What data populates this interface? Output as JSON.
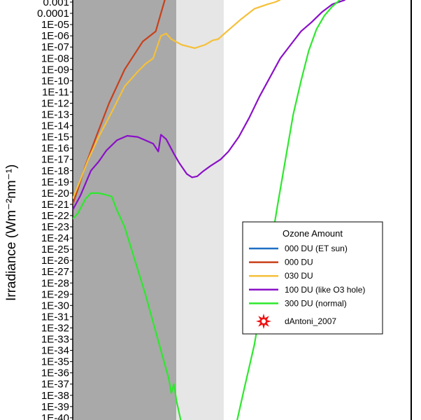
{
  "chart_data": {
    "type": "line",
    "title": "",
    "xlabel": "",
    "ylabel": "Irradiance (Wm⁻²nm⁻¹)",
    "y_scale": "log10",
    "yticks": [
      "0.001",
      "0.0001",
      "1E-05",
      "1E-06",
      "1E-07",
      "1E-08",
      "1E-09",
      "1E-10",
      "1E-11",
      "1E-12",
      "1E-13",
      "1E-14",
      "1E-15",
      "1E-16",
      "1E-17",
      "1E-18",
      "1E-19",
      "1E-20",
      "1E-21",
      "1E-22",
      "1E-23",
      "1E-24",
      "1E-25",
      "1E-26",
      "1E-27",
      "1E-28",
      "1E-29",
      "1E-30",
      "1E-31",
      "1E-32",
      "1E-33",
      "1E-34",
      "1E-35",
      "1E-36",
      "1E-37",
      "1E-38",
      "1E-39",
      "1E-40"
    ],
    "ylim_exponent": [
      -40.6,
      -2.8
    ],
    "xlim_fraction": [
      0,
      1
    ],
    "shaded_regions": [
      {
        "name": "dark-band",
        "x_range": [
          0.0,
          0.399
        ],
        "color": "#a9a9a9"
      },
      {
        "name": "light-band",
        "x_range": [
          0.399,
          0.582
        ],
        "color": "#e6e6e6"
      }
    ],
    "legend": {
      "title": "Ozone Amount",
      "position": "center-right",
      "entries": [
        {
          "label": "000 DU (ET sun)",
          "color": "#1f6fc4",
          "marker": "line"
        },
        {
          "label": "000 DU",
          "color": "#c8401a",
          "marker": "line"
        },
        {
          "label": "030 DU",
          "color": "#f5c03a",
          "marker": "line"
        },
        {
          "label": "100 DU (like O3 hole)",
          "color": "#8a10c8",
          "marker": "line"
        },
        {
          "label": "300 DU (normal)",
          "color": "#2de82d",
          "marker": "line"
        },
        {
          "label": "dAntoni_2007",
          "color": "#f01010",
          "marker": "star"
        }
      ]
    },
    "series": [
      {
        "name": "000 DU",
        "color": "#c8401a",
        "points": [
          [
            0.0,
            -21.0
          ],
          [
            0.022,
            -19.5
          ],
          [
            0.05,
            -17.5
          ],
          [
            0.09,
            -15.0
          ],
          [
            0.14,
            -12.0
          ],
          [
            0.2,
            -9.0
          ],
          [
            0.27,
            -6.5
          ],
          [
            0.32,
            -5.6
          ],
          [
            0.34,
            -4.0
          ],
          [
            0.355,
            -2.8
          ]
        ]
      },
      {
        "name": "030 DU",
        "color": "#f5c03a",
        "points": [
          [
            0.0,
            -20.5
          ],
          [
            0.03,
            -18.8
          ],
          [
            0.06,
            -17.0
          ],
          [
            0.1,
            -15.0
          ],
          [
            0.15,
            -12.8
          ],
          [
            0.2,
            -10.5
          ],
          [
            0.25,
            -9.2
          ],
          [
            0.28,
            -8.5
          ],
          [
            0.31,
            -8.0
          ],
          [
            0.34,
            -6.0
          ],
          [
            0.36,
            -5.8
          ],
          [
            0.38,
            -6.3
          ],
          [
            0.42,
            -6.8
          ],
          [
            0.47,
            -7.1
          ],
          [
            0.51,
            -6.8
          ],
          [
            0.54,
            -6.4
          ],
          [
            0.56,
            -6.3
          ],
          [
            0.6,
            -5.5
          ],
          [
            0.65,
            -4.5
          ],
          [
            0.7,
            -3.6
          ],
          [
            0.75,
            -3.2
          ],
          [
            0.78,
            -3.0
          ],
          [
            0.8,
            -2.8
          ]
        ]
      },
      {
        "name": "100 DU (like O3 hole)",
        "color": "#8a10c8",
        "points": [
          [
            0.0,
            -21.5
          ],
          [
            0.03,
            -20.2
          ],
          [
            0.07,
            -18.0
          ],
          [
            0.1,
            -17.2
          ],
          [
            0.13,
            -16.2
          ],
          [
            0.17,
            -15.3
          ],
          [
            0.21,
            -14.9
          ],
          [
            0.25,
            -15.0
          ],
          [
            0.28,
            -15.3
          ],
          [
            0.31,
            -15.6
          ],
          [
            0.33,
            -16.3
          ],
          [
            0.34,
            -14.8
          ],
          [
            0.36,
            -15.2
          ],
          [
            0.39,
            -16.5
          ],
          [
            0.41,
            -17.3
          ],
          [
            0.44,
            -18.3
          ],
          [
            0.46,
            -18.6
          ],
          [
            0.48,
            -18.5
          ],
          [
            0.5,
            -18.1
          ],
          [
            0.53,
            -17.6
          ],
          [
            0.57,
            -17.0
          ],
          [
            0.6,
            -16.3
          ],
          [
            0.64,
            -15.0
          ],
          [
            0.68,
            -13.3
          ],
          [
            0.72,
            -11.4
          ],
          [
            0.76,
            -9.7
          ],
          [
            0.8,
            -8.0
          ],
          [
            0.84,
            -6.8
          ],
          [
            0.88,
            -5.6
          ],
          [
            0.92,
            -4.8
          ],
          [
            0.96,
            -3.9
          ],
          [
            1.0,
            -3.2
          ],
          [
            1.05,
            -2.8
          ]
        ]
      },
      {
        "name": "300 DU (normal)",
        "color": "#2de82d",
        "points": [
          [
            0.0,
            -22.3
          ],
          [
            0.02,
            -21.8
          ],
          [
            0.05,
            -20.5
          ],
          [
            0.07,
            -20.0
          ],
          [
            0.1,
            -20.0
          ],
          [
            0.12,
            -20.1
          ],
          [
            0.15,
            -20.3
          ],
          [
            0.17,
            -21.5
          ],
          [
            0.2,
            -23.0
          ],
          [
            0.24,
            -26.0
          ],
          [
            0.28,
            -29.0
          ],
          [
            0.31,
            -31.5
          ],
          [
            0.34,
            -34.0
          ],
          [
            0.37,
            -36.5
          ],
          [
            0.38,
            -37.8
          ],
          [
            0.39,
            -37.0
          ],
          [
            0.4,
            -38.5
          ],
          [
            0.42,
            -40.6
          ]
        ]
      }
    ],
    "series_right": [
      {
        "name": "300 DU (normal)",
        "color": "#2de82d",
        "points": [
          [
            0.63,
            -40.6
          ],
          [
            0.66,
            -37.5
          ],
          [
            0.7,
            -33.5
          ],
          [
            0.73,
            -29.5
          ],
          [
            0.76,
            -25.2
          ],
          [
            0.79,
            -21.0
          ],
          [
            0.82,
            -17.0
          ],
          [
            0.85,
            -13.0
          ],
          [
            0.88,
            -10.0
          ],
          [
            0.91,
            -7.3
          ],
          [
            0.94,
            -5.4
          ],
          [
            0.97,
            -4.2
          ],
          [
            1.0,
            -3.4
          ],
          [
            1.03,
            -2.8
          ]
        ]
      }
    ]
  }
}
